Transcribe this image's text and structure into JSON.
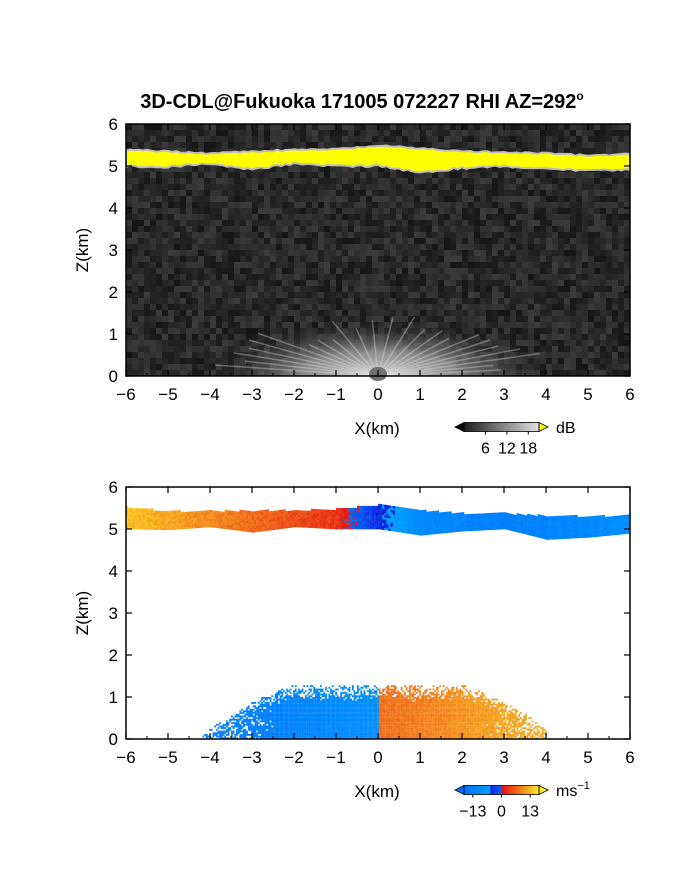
{
  "title": "3D-CDL@Fukuoka 171005 072227 RHI AZ=292",
  "title_superscript": "o",
  "chart_data": [
    {
      "type": "heatmap",
      "name": "reflectivity",
      "xlabel": "X(km)",
      "ylabel": "Z(km)",
      "xlim": [
        -6,
        6
      ],
      "ylim": [
        0,
        6
      ],
      "x_ticks": [
        -6,
        -5,
        -4,
        -3,
        -2,
        -1,
        0,
        1,
        2,
        3,
        4,
        5,
        6
      ],
      "y_ticks": [
        0,
        1,
        2,
        3,
        4,
        5,
        6
      ],
      "background": "noise (gray)",
      "layer_band": {
        "x": [
          -6,
          -5,
          -4,
          -3,
          -2,
          -1,
          0,
          1,
          2,
          3,
          4,
          5,
          6
        ],
        "z_bottom": [
          5.0,
          4.98,
          5.05,
          4.92,
          5.05,
          5.0,
          5.0,
          4.85,
          4.95,
          5.0,
          4.92,
          4.9,
          4.92
        ],
        "z_top": [
          5.38,
          5.35,
          5.3,
          5.35,
          5.38,
          5.4,
          5.48,
          5.42,
          5.35,
          5.32,
          5.3,
          5.25,
          5.28
        ],
        "color": "#ffff00"
      },
      "near_ground_echo": {
        "x_range": [
          -4,
          4
        ],
        "z_max": 1.1,
        "center_x": 0
      },
      "colorbar": {
        "label": "dB",
        "ticks": [
          6,
          12,
          18
        ],
        "range": [
          0,
          21
        ]
      }
    },
    {
      "type": "heatmap",
      "name": "doppler_velocity",
      "xlabel": "X(km)",
      "ylabel": "Z(km)",
      "xlim": [
        -6,
        6
      ],
      "ylim": [
        0,
        6
      ],
      "x_ticks": [
        -6,
        -5,
        -4,
        -3,
        -2,
        -1,
        0,
        1,
        2,
        3,
        4,
        5,
        6
      ],
      "y_ticks": [
        0,
        1,
        2,
        3,
        4,
        5,
        6
      ],
      "layer_band": {
        "x": [
          -6,
          -5,
          -4,
          -3,
          -2,
          -1,
          0,
          1,
          2,
          3,
          4,
          5,
          6
        ],
        "z_bottom": [
          5.0,
          4.98,
          5.05,
          4.92,
          5.05,
          5.0,
          5.0,
          4.85,
          4.95,
          5.0,
          4.75,
          4.8,
          4.9
        ],
        "z_top": [
          5.5,
          5.4,
          5.4,
          5.42,
          5.42,
          5.45,
          5.55,
          5.42,
          5.35,
          5.35,
          5.3,
          5.28,
          5.3
        ],
        "velocity_ms": [
          12,
          10,
          8,
          6,
          4,
          2,
          -4,
          -10,
          -11,
          -12,
          -11,
          -10,
          -9
        ]
      },
      "near_ground_echo": {
        "x_range": [
          -4.5,
          4.0
        ],
        "z_max": 1.25,
        "left_velocity_ms": -9,
        "right_velocity_ms": 6
      },
      "colorbar": {
        "label": "ms",
        "label_superscript": "−1",
        "ticks": [
          -13,
          0,
          13
        ],
        "range": [
          -17,
          17
        ]
      }
    }
  ],
  "colors": {
    "neg_low": "#00c8ff",
    "neg_high": "#0000ff",
    "pos_low": "#ff0000",
    "pos_high": "#ffff00",
    "layer_yellow": "#ffff00",
    "background": "#ffffff"
  }
}
